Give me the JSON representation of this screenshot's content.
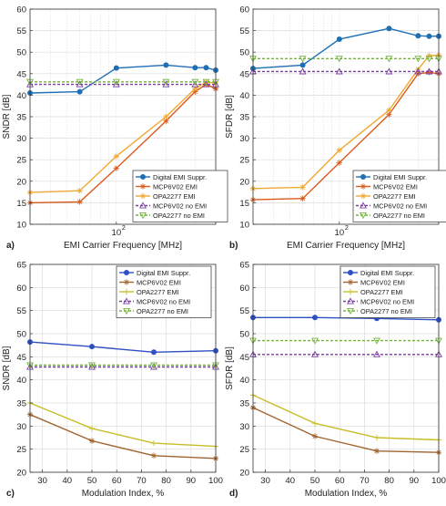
{
  "chart_data": [
    {
      "panel_label": "a)",
      "type": "line",
      "xscale": "log",
      "xlim": [
        30,
        400
      ],
      "ylim": [
        10,
        60
      ],
      "xticks": [
        {
          "v": 100,
          "label": "10"
        }
      ],
      "xticks_exponent": "2",
      "yticks": [
        10,
        15,
        20,
        25,
        30,
        35,
        40,
        45,
        50,
        55,
        60
      ],
      "xlabel": "EMI Carrier Frequency [MHz]",
      "ylabel": "SNDR [dB]",
      "grid": true,
      "legend_position": "bottom-right",
      "series": [
        {
          "name": "Digital EMI Suppr.",
          "color": "#1f6fb5",
          "marker": "circle",
          "dash": false,
          "x": [
            30,
            60,
            100,
            200,
            300,
            350,
            400
          ],
          "y": [
            40.5,
            40.8,
            46.3,
            47.0,
            46.4,
            46.4,
            45.8
          ]
        },
        {
          "name": "MCP6V02 EMI",
          "color": "#d95a1c",
          "marker": "star",
          "dash": false,
          "x": [
            30,
            60,
            100,
            200,
            300,
            350,
            400
          ],
          "y": [
            15.0,
            15.2,
            23.0,
            34.0,
            40.8,
            42.5,
            41.5
          ]
        },
        {
          "name": "OPA2277 EMI",
          "color": "#f0a830",
          "marker": "star",
          "dash": false,
          "x": [
            30,
            60,
            100,
            200,
            300,
            350,
            400
          ],
          "y": [
            17.4,
            17.8,
            25.8,
            35.0,
            41.5,
            43.0,
            42.8
          ]
        },
        {
          "name": "MCP6V02 no EMI",
          "color": "#7a3fa0",
          "marker": "triangle-up",
          "dash": true,
          "x": [
            30,
            60,
            100,
            200,
            300,
            350,
            400
          ],
          "y": [
            42.5,
            42.5,
            42.5,
            42.5,
            42.5,
            42.5,
            42.5
          ]
        },
        {
          "name": "OPA2277 no EMI",
          "color": "#74b43a",
          "marker": "triangle-down",
          "dash": true,
          "x": [
            30,
            60,
            100,
            200,
            300,
            350,
            400
          ],
          "y": [
            43.1,
            43.1,
            43.1,
            43.1,
            43.1,
            43.1,
            43.1
          ]
        }
      ]
    },
    {
      "panel_label": "b)",
      "type": "line",
      "xscale": "log",
      "xlim": [
        30,
        400
      ],
      "ylim": [
        10,
        60
      ],
      "xticks": [
        {
          "v": 100,
          "label": "10"
        }
      ],
      "xticks_exponent": "2",
      "yticks": [
        10,
        15,
        20,
        25,
        30,
        35,
        40,
        45,
        50,
        55,
        60
      ],
      "xlabel": "EMI Carrier Frequency [MHz]",
      "ylabel": "SFDR [dB]",
      "grid": true,
      "legend_position": "bottom-right",
      "series": [
        {
          "name": "Digital EMI Suppr.",
          "color": "#1f6fb5",
          "marker": "circle",
          "dash": false,
          "x": [
            30,
            60,
            100,
            200,
            300,
            350,
            400
          ],
          "y": [
            46.2,
            47.0,
            53.0,
            55.5,
            53.8,
            53.7,
            53.7
          ]
        },
        {
          "name": "MCP6V02 EMI",
          "color": "#d95a1c",
          "marker": "star",
          "dash": false,
          "x": [
            30,
            60,
            100,
            200,
            300,
            350,
            400
          ],
          "y": [
            15.7,
            16.0,
            24.3,
            35.5,
            45.0,
            45.3,
            45.0
          ]
        },
        {
          "name": "OPA2277 EMI",
          "color": "#f0a830",
          "marker": "star",
          "dash": false,
          "x": [
            30,
            60,
            100,
            200,
            300,
            350,
            400
          ],
          "y": [
            18.3,
            18.6,
            27.2,
            36.5,
            46.0,
            49.2,
            49.3
          ]
        },
        {
          "name": "MCP6V02 no EMI",
          "color": "#7a3fa0",
          "marker": "triangle-up",
          "dash": true,
          "x": [
            30,
            60,
            100,
            200,
            300,
            350,
            400
          ],
          "y": [
            45.5,
            45.5,
            45.5,
            45.5,
            45.5,
            45.5,
            45.5
          ]
        },
        {
          "name": "OPA2277 no EMI",
          "color": "#74b43a",
          "marker": "triangle-down",
          "dash": true,
          "x": [
            30,
            60,
            100,
            200,
            300,
            350,
            400
          ],
          "y": [
            48.5,
            48.5,
            48.5,
            48.5,
            48.5,
            48.5,
            48.5
          ]
        }
      ]
    },
    {
      "panel_label": "c)",
      "type": "line",
      "xscale": "linear",
      "xlim": [
        25,
        100
      ],
      "ylim": [
        20,
        65
      ],
      "xticks": [
        {
          "v": 30,
          "label": "30"
        },
        {
          "v": 40,
          "label": "40"
        },
        {
          "v": 50,
          "label": "50"
        },
        {
          "v": 60,
          "label": "60"
        },
        {
          "v": 70,
          "label": "70"
        },
        {
          "v": 80,
          "label": "80"
        },
        {
          "v": 90,
          "label": "90"
        },
        {
          "v": 100,
          "label": "100"
        }
      ],
      "yticks": [
        20,
        25,
        30,
        35,
        40,
        45,
        50,
        55,
        60,
        65
      ],
      "xlabel": "Modulation Index, %",
      "ylabel": "SNDR [dB]",
      "grid": true,
      "legend_position": "top-right",
      "series": [
        {
          "name": "Digital EMI Suppr.",
          "color": "#2f4fc4",
          "marker": "circle",
          "dash": false,
          "x": [
            25,
            50,
            75,
            100
          ],
          "y": [
            48.2,
            47.2,
            46.0,
            46.3
          ]
        },
        {
          "name": "MCP6V02 EMI",
          "color": "#a0642e",
          "marker": "star",
          "dash": false,
          "x": [
            25,
            50,
            75,
            100
          ],
          "y": [
            32.5,
            26.8,
            23.6,
            23.0
          ]
        },
        {
          "name": "OPA2277 EMI",
          "color": "#c8be2a",
          "marker": "plus",
          "dash": false,
          "x": [
            25,
            50,
            75,
            100
          ],
          "y": [
            35.0,
            29.5,
            26.3,
            25.6
          ]
        },
        {
          "name": "MCP6V02 no EMI",
          "color": "#7a3fa0",
          "marker": "triangle-up",
          "dash": true,
          "x": [
            25,
            50,
            75,
            100
          ],
          "y": [
            42.8,
            42.8,
            42.8,
            42.8
          ]
        },
        {
          "name": "OPA2277 no EMI",
          "color": "#74b43a",
          "marker": "triangle-down",
          "dash": true,
          "x": [
            25,
            50,
            75,
            100
          ],
          "y": [
            43.2,
            43.2,
            43.2,
            43.2
          ]
        }
      ]
    },
    {
      "panel_label": "d)",
      "type": "line",
      "xscale": "linear",
      "xlim": [
        25,
        100
      ],
      "ylim": [
        20,
        65
      ],
      "xticks": [
        {
          "v": 30,
          "label": "30"
        },
        {
          "v": 40,
          "label": "40"
        },
        {
          "v": 50,
          "label": "50"
        },
        {
          "v": 60,
          "label": "60"
        },
        {
          "v": 70,
          "label": "70"
        },
        {
          "v": 80,
          "label": "80"
        },
        {
          "v": 90,
          "label": "90"
        },
        {
          "v": 100,
          "label": "100"
        }
      ],
      "yticks": [
        20,
        25,
        30,
        35,
        40,
        45,
        50,
        55,
        60,
        65
      ],
      "xlabel": "Modulation Index, %",
      "ylabel": "SFDR [dB]",
      "grid": true,
      "legend_position": "top-right",
      "series": [
        {
          "name": "Digital EMI Suppr.",
          "color": "#2f4fc4",
          "marker": "circle",
          "dash": false,
          "x": [
            25,
            50,
            75,
            100
          ],
          "y": [
            53.5,
            53.5,
            53.3,
            53.0
          ]
        },
        {
          "name": "MCP6V02 EMI",
          "color": "#a0642e",
          "marker": "star",
          "dash": false,
          "x": [
            25,
            50,
            75,
            100
          ],
          "y": [
            34.0,
            27.8,
            24.6,
            24.3
          ]
        },
        {
          "name": "OPA2277 EMI",
          "color": "#c8be2a",
          "marker": "plus",
          "dash": false,
          "x": [
            25,
            50,
            75,
            100
          ],
          "y": [
            36.7,
            30.6,
            27.5,
            27.0
          ]
        },
        {
          "name": "MCP6V02 no EMI",
          "color": "#7a3fa0",
          "marker": "triangle-up",
          "dash": true,
          "x": [
            25,
            50,
            75,
            100
          ],
          "y": [
            45.5,
            45.5,
            45.5,
            45.5
          ]
        },
        {
          "name": "OPA2277 no EMI",
          "color": "#74b43a",
          "marker": "triangle-down",
          "dash": true,
          "x": [
            25,
            50,
            75,
            100
          ],
          "y": [
            48.5,
            48.5,
            48.5,
            48.5
          ]
        }
      ]
    }
  ]
}
